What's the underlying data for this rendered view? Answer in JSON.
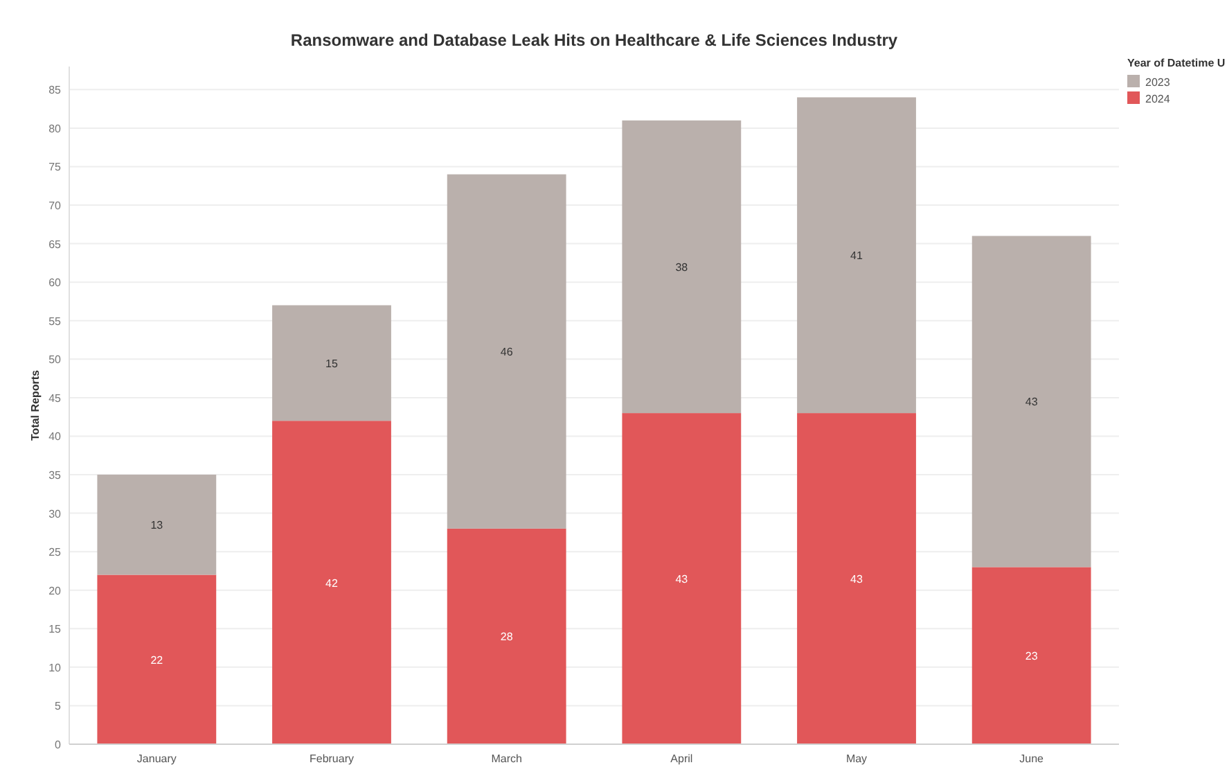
{
  "chart_data": {
    "type": "bar",
    "title": "Ransomware and Database Leak Hits on Healthcare & Life Sciences Industry",
    "ylabel": "Total Reports",
    "legend_title": "Year of Datetime U",
    "categories": [
      "January",
      "February",
      "March",
      "April",
      "May",
      "June"
    ],
    "stacked": true,
    "series": [
      {
        "name": "2024",
        "color": "#e15759",
        "values": [
          22,
          42,
          28,
          43,
          43,
          23
        ]
      },
      {
        "name": "2023",
        "color": "#bab0ac",
        "values": [
          13,
          15,
          46,
          38,
          41,
          43
        ]
      }
    ],
    "ylim": [
      0,
      88
    ],
    "yticks": [
      0,
      5,
      10,
      15,
      20,
      25,
      30,
      35,
      40,
      45,
      50,
      55,
      60,
      65,
      70,
      75,
      80,
      85
    ],
    "grid": "y",
    "legend": "top right",
    "data_labels": true
  }
}
